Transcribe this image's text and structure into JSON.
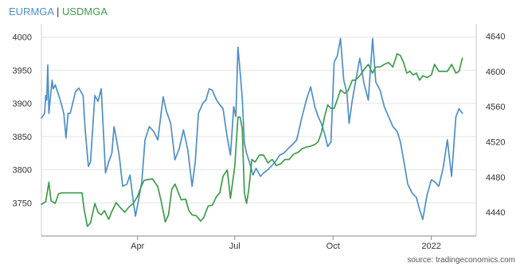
{
  "title": {
    "series_a": "EURMGA",
    "separator": " | ",
    "series_b": "USDMGA"
  },
  "source": "source: tradingeconomics.com",
  "colors": {
    "eur": "#4f8fc5",
    "usd": "#3f9b4c",
    "grid": "#e4e4e4",
    "frame": "#cccccc",
    "axis": "#888888",
    "tick_text": "#333333",
    "title_sep": "#333333"
  },
  "chart_data": {
    "type": "line",
    "title": "EURMGA | USDMGA",
    "grid": true,
    "x_axis": {
      "start": "2021-01-01",
      "end": "2022-02-12",
      "ticks": [
        {
          "date": "2021-04-01",
          "label": "Apr"
        },
        {
          "date": "2021-07-01",
          "label": "Jul"
        },
        {
          "date": "2021-10-01",
          "label": "Oct"
        },
        {
          "date": "2022-01-01",
          "label": "2022"
        }
      ]
    },
    "y_left": {
      "series": "EURMGA",
      "range": [
        3700,
        4020
      ],
      "ticks": [
        3750,
        3800,
        3850,
        3900,
        3950,
        4000
      ]
    },
    "y_right": {
      "series": "USDMGA",
      "range": [
        4413,
        4654
      ],
      "ticks": [
        4440,
        4480,
        4520,
        4560,
        4600,
        4640
      ]
    },
    "series": [
      {
        "name": "EURMGA",
        "axis": "left",
        "points": [
          [
            "2021-01-01",
            3878
          ],
          [
            "2021-01-04",
            3885
          ],
          [
            "2021-01-05",
            3912
          ],
          [
            "2021-01-06",
            3905
          ],
          [
            "2021-01-07",
            3958
          ],
          [
            "2021-01-08",
            3885
          ],
          [
            "2021-01-11",
            3935
          ],
          [
            "2021-01-12",
            3922
          ],
          [
            "2021-01-14",
            3928
          ],
          [
            "2021-01-18",
            3908
          ],
          [
            "2021-01-20",
            3897
          ],
          [
            "2021-01-22",
            3884
          ],
          [
            "2021-01-24",
            3848
          ],
          [
            "2021-01-26",
            3885
          ],
          [
            "2021-01-28",
            3885
          ],
          [
            "2021-02-02",
            3918
          ],
          [
            "2021-02-05",
            3923
          ],
          [
            "2021-02-09",
            3912
          ],
          [
            "2021-02-11",
            3860
          ],
          [
            "2021-02-14",
            3805
          ],
          [
            "2021-02-16",
            3812
          ],
          [
            "2021-02-20",
            3912
          ],
          [
            "2021-02-23",
            3903
          ],
          [
            "2021-02-26",
            3922
          ],
          [
            "2021-03-02",
            3795
          ],
          [
            "2021-03-05",
            3812
          ],
          [
            "2021-03-08",
            3825
          ],
          [
            "2021-03-10",
            3865
          ],
          [
            "2021-03-12",
            3848
          ],
          [
            "2021-03-15",
            3820
          ],
          [
            "2021-03-18",
            3775
          ],
          [
            "2021-03-22",
            3778
          ],
          [
            "2021-03-25",
            3792
          ],
          [
            "2021-03-28",
            3752
          ],
          [
            "2021-03-30",
            3730
          ],
          [
            "2021-04-02",
            3755
          ],
          [
            "2021-04-05",
            3782
          ],
          [
            "2021-04-08",
            3845
          ],
          [
            "2021-04-12",
            3865
          ],
          [
            "2021-04-16",
            3858
          ],
          [
            "2021-04-20",
            3845
          ],
          [
            "2021-04-25",
            3910
          ],
          [
            "2021-04-28",
            3888
          ],
          [
            "2021-05-02",
            3870
          ],
          [
            "2021-05-06",
            3815
          ],
          [
            "2021-05-10",
            3832
          ],
          [
            "2021-05-14",
            3860
          ],
          [
            "2021-05-18",
            3830
          ],
          [
            "2021-05-22",
            3775
          ],
          [
            "2021-05-25",
            3812
          ],
          [
            "2021-05-28",
            3885
          ],
          [
            "2021-06-01",
            3900
          ],
          [
            "2021-06-04",
            3905
          ],
          [
            "2021-06-07",
            3922
          ],
          [
            "2021-06-10",
            3920
          ],
          [
            "2021-06-14",
            3905
          ],
          [
            "2021-06-17",
            3898
          ],
          [
            "2021-06-20",
            3892
          ],
          [
            "2021-06-24",
            3848
          ],
          [
            "2021-06-27",
            3822
          ],
          [
            "2021-06-30",
            3895
          ],
          [
            "2021-07-02",
            3880
          ],
          [
            "2021-07-04",
            3985
          ],
          [
            "2021-07-06",
            3948
          ],
          [
            "2021-07-08",
            3908
          ],
          [
            "2021-07-10",
            3840
          ],
          [
            "2021-07-12",
            3825
          ],
          [
            "2021-07-15",
            3810
          ],
          [
            "2021-07-18",
            3792
          ],
          [
            "2021-07-21",
            3802
          ],
          [
            "2021-07-25",
            3790
          ],
          [
            "2021-07-28",
            3795
          ],
          [
            "2021-08-01",
            3800
          ],
          [
            "2021-08-04",
            3805
          ],
          [
            "2021-08-08",
            3812
          ],
          [
            "2021-08-12",
            3822
          ],
          [
            "2021-08-16",
            3825
          ],
          [
            "2021-08-20",
            3832
          ],
          [
            "2021-08-24",
            3838
          ],
          [
            "2021-08-28",
            3845
          ],
          [
            "2021-09-02",
            3880
          ],
          [
            "2021-09-06",
            3905
          ],
          [
            "2021-09-10",
            3925
          ],
          [
            "2021-09-14",
            3895
          ],
          [
            "2021-09-17",
            3880
          ],
          [
            "2021-09-20",
            3870
          ],
          [
            "2021-09-23",
            3855
          ],
          [
            "2021-09-26",
            3835
          ],
          [
            "2021-09-29",
            3842
          ],
          [
            "2021-10-02",
            3962
          ],
          [
            "2021-10-05",
            3972
          ],
          [
            "2021-10-08",
            3998
          ],
          [
            "2021-10-11",
            3935
          ],
          [
            "2021-10-14",
            3915
          ],
          [
            "2021-10-16",
            3870
          ],
          [
            "2021-10-19",
            3905
          ],
          [
            "2021-10-22",
            3932
          ],
          [
            "2021-10-26",
            3968
          ],
          [
            "2021-10-30",
            3930
          ],
          [
            "2021-11-03",
            3905
          ],
          [
            "2021-11-07",
            3998
          ],
          [
            "2021-11-10",
            3932
          ],
          [
            "2021-11-14",
            3920
          ],
          [
            "2021-11-18",
            3895
          ],
          [
            "2021-11-22",
            3880
          ],
          [
            "2021-11-26",
            3865
          ],
          [
            "2021-11-30",
            3858
          ],
          [
            "2021-12-03",
            3842
          ],
          [
            "2021-12-06",
            3815
          ],
          [
            "2021-12-10",
            3778
          ],
          [
            "2021-12-14",
            3765
          ],
          [
            "2021-12-18",
            3758
          ],
          [
            "2021-12-21",
            3740
          ],
          [
            "2021-12-24",
            3725
          ],
          [
            "2021-12-28",
            3762
          ],
          [
            "2022-01-01",
            3785
          ],
          [
            "2022-01-04",
            3782
          ],
          [
            "2022-01-08",
            3775
          ],
          [
            "2022-01-12",
            3802
          ],
          [
            "2022-01-16",
            3845
          ],
          [
            "2022-01-20",
            3790
          ],
          [
            "2022-01-24",
            3880
          ],
          [
            "2022-01-27",
            3892
          ],
          [
            "2022-01-30",
            3885
          ]
        ]
      },
      {
        "name": "USDMGA",
        "axis": "right",
        "points": [
          [
            "2021-01-01",
            4449
          ],
          [
            "2021-01-05",
            4452
          ],
          [
            "2021-01-08",
            4474
          ],
          [
            "2021-01-10",
            4453
          ],
          [
            "2021-01-14",
            4450
          ],
          [
            "2021-01-17",
            4461
          ],
          [
            "2021-01-20",
            4462
          ],
          [
            "2021-01-23",
            4462
          ],
          [
            "2021-01-26",
            4462
          ],
          [
            "2021-01-30",
            4462
          ],
          [
            "2021-02-02",
            4462
          ],
          [
            "2021-02-05",
            4462
          ],
          [
            "2021-02-08",
            4462
          ],
          [
            "2021-02-10",
            4443
          ],
          [
            "2021-02-13",
            4424
          ],
          [
            "2021-02-16",
            4428
          ],
          [
            "2021-02-20",
            4450
          ],
          [
            "2021-02-23",
            4440
          ],
          [
            "2021-02-26",
            4437
          ],
          [
            "2021-03-01",
            4442
          ],
          [
            "2021-03-05",
            4432
          ],
          [
            "2021-03-08",
            4441
          ],
          [
            "2021-03-12",
            4451
          ],
          [
            "2021-03-16",
            4445
          ],
          [
            "2021-03-20",
            4440
          ],
          [
            "2021-03-24",
            4446
          ],
          [
            "2021-03-28",
            4450
          ],
          [
            "2021-04-01",
            4458
          ],
          [
            "2021-04-04",
            4468
          ],
          [
            "2021-04-07",
            4476
          ],
          [
            "2021-04-10",
            4477
          ],
          [
            "2021-04-15",
            4478
          ],
          [
            "2021-04-20",
            4469
          ],
          [
            "2021-04-23",
            4453
          ],
          [
            "2021-04-27",
            4429
          ],
          [
            "2021-04-30",
            4437
          ],
          [
            "2021-05-03",
            4466
          ],
          [
            "2021-05-06",
            4472
          ],
          [
            "2021-05-09",
            4463
          ],
          [
            "2021-05-12",
            4454
          ],
          [
            "2021-05-16",
            4455
          ],
          [
            "2021-05-19",
            4442
          ],
          [
            "2021-05-22",
            4437
          ],
          [
            "2021-05-26",
            4436
          ],
          [
            "2021-05-30",
            4430
          ],
          [
            "2021-06-02",
            4434
          ],
          [
            "2021-06-06",
            4447
          ],
          [
            "2021-06-10",
            4448
          ],
          [
            "2021-06-14",
            4458
          ],
          [
            "2021-06-17",
            4462
          ],
          [
            "2021-06-20",
            4481
          ],
          [
            "2021-06-24",
            4488
          ],
          [
            "2021-06-27",
            4456
          ],
          [
            "2021-07-01",
            4492
          ],
          [
            "2021-07-04",
            4548
          ],
          [
            "2021-07-06",
            4548
          ],
          [
            "2021-07-08",
            4535
          ],
          [
            "2021-07-10",
            4462
          ],
          [
            "2021-07-12",
            4450
          ],
          [
            "2021-07-14",
            4465
          ],
          [
            "2021-07-17",
            4500
          ],
          [
            "2021-07-20",
            4497
          ],
          [
            "2021-07-24",
            4505
          ],
          [
            "2021-07-28",
            4505
          ],
          [
            "2021-08-01",
            4496
          ],
          [
            "2021-08-05",
            4500
          ],
          [
            "2021-08-09",
            4493
          ],
          [
            "2021-08-13",
            4495
          ],
          [
            "2021-08-17",
            4500
          ],
          [
            "2021-08-21",
            4500
          ],
          [
            "2021-08-25",
            4506
          ],
          [
            "2021-08-29",
            4508
          ],
          [
            "2021-09-02",
            4512
          ],
          [
            "2021-09-06",
            4514
          ],
          [
            "2021-09-10",
            4515
          ],
          [
            "2021-09-14",
            4517
          ],
          [
            "2021-09-17",
            4520
          ],
          [
            "2021-09-20",
            4530
          ],
          [
            "2021-09-23",
            4548
          ],
          [
            "2021-09-26",
            4562
          ],
          [
            "2021-09-29",
            4558
          ],
          [
            "2021-10-02",
            4558
          ],
          [
            "2021-10-05",
            4568
          ],
          [
            "2021-10-08",
            4579
          ],
          [
            "2021-10-12",
            4575
          ],
          [
            "2021-10-15",
            4578
          ],
          [
            "2021-10-19",
            4590
          ],
          [
            "2021-10-22",
            4590
          ],
          [
            "2021-10-26",
            4595
          ],
          [
            "2021-10-30",
            4602
          ],
          [
            "2021-11-03",
            4608
          ],
          [
            "2021-11-07",
            4598
          ],
          [
            "2021-11-10",
            4605
          ],
          [
            "2021-11-14",
            4605
          ],
          [
            "2021-11-18",
            4608
          ],
          [
            "2021-11-22",
            4610
          ],
          [
            "2021-11-26",
            4605
          ],
          [
            "2021-11-30",
            4620
          ],
          [
            "2021-12-03",
            4618
          ],
          [
            "2021-12-06",
            4610
          ],
          [
            "2021-12-09",
            4598
          ],
          [
            "2021-12-12",
            4600
          ],
          [
            "2021-12-15",
            4596
          ],
          [
            "2021-12-18",
            4598
          ],
          [
            "2021-12-21",
            4590
          ],
          [
            "2021-12-24",
            4595
          ],
          [
            "2021-12-28",
            4593
          ],
          [
            "2022-01-01",
            4596
          ],
          [
            "2022-01-04",
            4608
          ],
          [
            "2022-01-08",
            4600
          ],
          [
            "2022-01-12",
            4600
          ],
          [
            "2022-01-16",
            4600
          ],
          [
            "2022-01-20",
            4608
          ],
          [
            "2022-01-24",
            4598
          ],
          [
            "2022-01-27",
            4600
          ],
          [
            "2022-01-30",
            4615
          ]
        ]
      }
    ]
  }
}
